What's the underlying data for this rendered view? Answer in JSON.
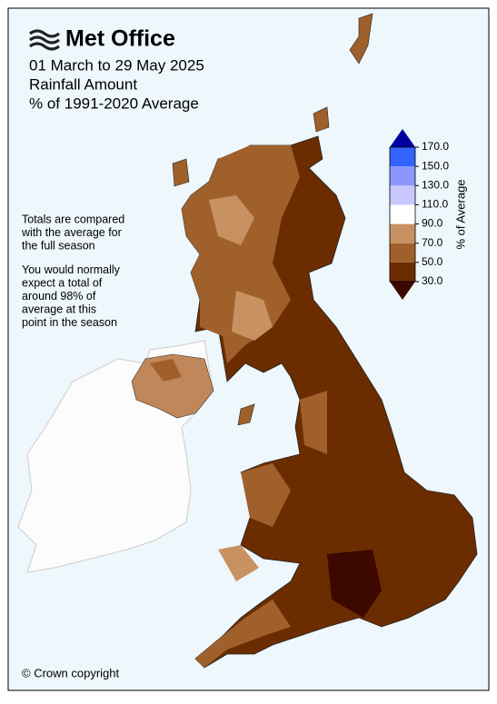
{
  "header": {
    "logo": "Met Office",
    "title_lines": [
      "01 March to 29 May 2025",
      "Rainfall Amount",
      "% of 1991-2020 Average"
    ]
  },
  "notes": [
    [
      "Totals are compared",
      "with the average for",
      "the full season"
    ],
    [
      "You would normally",
      "expect a total of",
      "around 98% of",
      "average at this",
      "point in the season"
    ]
  ],
  "legend": {
    "label": "% of Average",
    "ticks": [
      {
        "value": 30,
        "label": "30.0"
      },
      {
        "value": 50,
        "label": "50.0"
      },
      {
        "value": 70,
        "label": "70.0"
      },
      {
        "value": 90,
        "label": "90.0"
      },
      {
        "value": 110,
        "label": "110.0"
      },
      {
        "value": 130,
        "label": "130.0"
      },
      {
        "value": 150,
        "label": "150.0"
      },
      {
        "value": 170,
        "label": "170.0"
      }
    ],
    "colors": [
      "#3c0800",
      "#6b2d00",
      "#a0602c",
      "#c89162",
      "#ffffff",
      "#c8c8ff",
      "#8c96ff",
      "#3264ff",
      "#0000a0"
    ]
  },
  "footer": {
    "copyright": "© Crown copyright"
  }
}
